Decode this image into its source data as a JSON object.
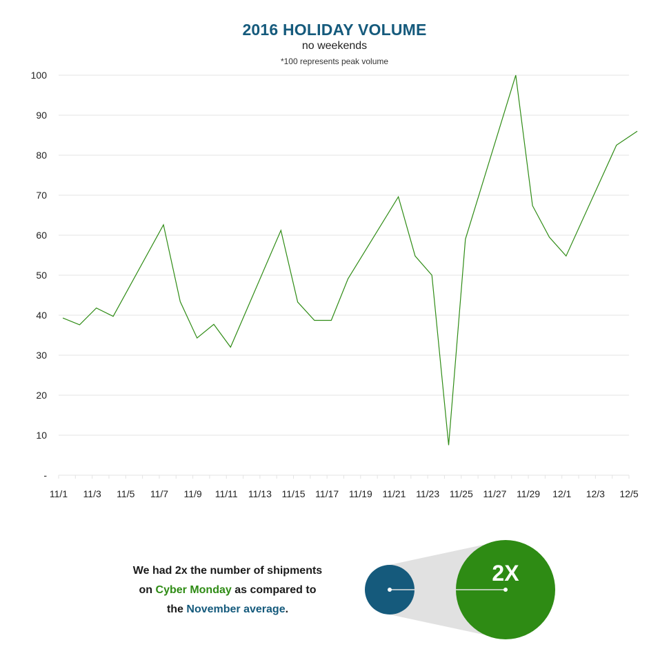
{
  "header": {
    "title": "2016 HOLIDAY VOLUME",
    "subtitle": "no weekends",
    "note": "*100 represents peak volume"
  },
  "colors": {
    "line": "#2e8b14",
    "title": "#155a7c",
    "grid": "#e3e3e3",
    "november_circle": "#155a7c",
    "cyber_monday_circle": "#2e8b14",
    "connector": "#e1e1e1"
  },
  "chart_data": {
    "type": "line",
    "title": "2016 HOLIDAY VOLUME",
    "subtitle": "no weekends",
    "note": "*100 represents peak volume",
    "xlabel": "",
    "ylabel": "",
    "x_tick_labels": [
      "11/1",
      "11/3",
      "11/5",
      "11/7",
      "11/9",
      "11/11",
      "11/13",
      "11/15",
      "11/17",
      "11/19",
      "11/21",
      "11/23",
      "11/25",
      "11/27",
      "11/29",
      "12/1",
      "12/3",
      "12/5"
    ],
    "x_range": [
      0,
      34
    ],
    "y_tick_labels": [
      "-",
      "10",
      "20",
      "30",
      "40",
      "50",
      "60",
      "70",
      "80",
      "90",
      "100"
    ],
    "y_ticks": [
      0,
      10,
      20,
      30,
      40,
      50,
      60,
      70,
      80,
      90,
      100
    ],
    "ylim": [
      0,
      100
    ],
    "grid": true,
    "series": [
      {
        "x": [
          0.25,
          1.25,
          2.25,
          3.25,
          6.25,
          7.25,
          8.25,
          9.25,
          10.25,
          13.25,
          14.25,
          15.25,
          16.25,
          17.25,
          20.25,
          21.25,
          22.25,
          23.25,
          24.25,
          27.25,
          28.25,
          29.25,
          30.25,
          33.25,
          34.5
        ],
        "values": [
          39.3,
          37.6,
          41.8,
          39.7,
          62.6,
          43.4,
          34.3,
          37.7,
          32.0,
          61.2,
          43.3,
          38.7,
          38.7,
          49.1,
          69.6,
          54.8,
          50.0,
          7.5,
          59.0,
          100,
          67.4,
          59.5,
          54.8,
          82.5,
          86
        ]
      }
    ]
  },
  "callout": {
    "line1_pre": "We had ",
    "line1_bold": "2x",
    "line1_post": " the number of shipments",
    "line2_pre": "on ",
    "line2_highlight": "Cyber Monday",
    "line2_post": " as compared to",
    "line3_pre": "the ",
    "line3_highlight": "November average",
    "line3_post": ".",
    "big_label": "2X"
  }
}
